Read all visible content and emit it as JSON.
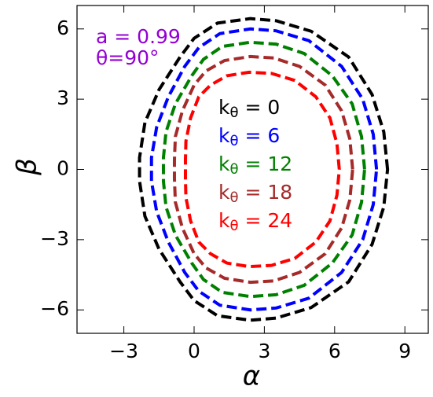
{
  "chart_data": {
    "type": "line",
    "annotations": [
      {
        "text": "a = 0.99",
        "color": "#9400d3"
      },
      {
        "text": "θ=90°",
        "color": "#9400d3"
      }
    ],
    "xlabel": "α",
    "ylabel": "β",
    "xlim": [
      -5,
      10
    ],
    "ylim": [
      -7,
      7
    ],
    "xticks": [
      {
        "value": -3,
        "label": "−3"
      },
      0,
      3,
      6,
      9
    ],
    "yticks": [
      {
        "value": -6,
        "label": "−6"
      },
      {
        "value": -3,
        "label": "−3"
      },
      0,
      3,
      6
    ],
    "series": [
      {
        "name": "kθ = 0",
        "color": "#000000",
        "x": [
          8.26,
          8.1,
          7.6,
          6.6,
          5.0,
          3.5,
          2.4,
          1.0,
          0.0,
          -0.6,
          -1.5,
          -2.1,
          -2.33,
          -2.33,
          -2.1,
          -1.5,
          -0.6,
          0.0,
          1.0,
          2.4,
          3.5,
          5.0,
          6.6,
          7.6,
          8.1
        ],
        "values": [
          0,
          1.6,
          3.2,
          4.8,
          5.9,
          6.35,
          6.44,
          6.25,
          5.6,
          4.8,
          3.4,
          2.0,
          0.5,
          -0.5,
          -2.0,
          -3.4,
          -4.8,
          -5.6,
          -6.25,
          -6.44,
          -6.35,
          -5.9,
          -4.8,
          -3.2,
          -1.6
        ]
      },
      {
        "name": "kθ = 6",
        "color": "#0000ff",
        "x": [
          7.79,
          7.65,
          7.2,
          6.3,
          4.9,
          3.5,
          2.4,
          1.1,
          0.2,
          -0.4,
          -1.1,
          -1.6,
          -1.82,
          -1.82,
          -1.6,
          -1.1,
          -0.4,
          0.2,
          1.1,
          2.4,
          3.5,
          4.9,
          6.3,
          7.2,
          7.65
        ],
        "values": [
          0,
          1.5,
          3.0,
          4.4,
          5.5,
          5.92,
          6.0,
          5.8,
          5.2,
          4.4,
          3.1,
          1.8,
          0.5,
          -0.5,
          -1.8,
          -3.1,
          -4.4,
          -5.2,
          -5.8,
          -6.0,
          -5.92,
          -5.5,
          -4.4,
          -3.0,
          -1.5
        ]
      },
      {
        "name": "kθ = 12",
        "color": "#008000",
        "x": [
          7.28,
          7.15,
          6.75,
          5.9,
          4.7,
          3.5,
          2.4,
          1.2,
          0.4,
          -0.1,
          -0.8,
          -1.2,
          -1.31,
          -1.31,
          -1.2,
          -0.8,
          -0.1,
          0.4,
          1.2,
          2.4,
          3.5,
          4.7,
          5.9,
          6.75,
          7.15
        ],
        "values": [
          0,
          1.4,
          2.8,
          4.0,
          4.95,
          5.35,
          5.43,
          5.25,
          4.7,
          4.0,
          2.8,
          1.6,
          0.5,
          -0.5,
          -1.6,
          -2.8,
          -4.0,
          -4.7,
          -5.25,
          -5.43,
          -5.35,
          -4.95,
          -4.0,
          -2.8,
          -1.4
        ]
      },
      {
        "name": "kθ = 18",
        "color": "#a52a2a",
        "x": [
          6.77,
          6.65,
          6.3,
          5.6,
          4.5,
          3.4,
          2.4,
          1.3,
          0.5,
          0.0,
          -0.5,
          -0.8,
          -0.84,
          -0.84,
          -0.8,
          -0.5,
          0.0,
          0.5,
          1.3,
          2.4,
          3.4,
          4.5,
          5.6,
          6.3,
          6.65
        ],
        "values": [
          0,
          1.3,
          2.5,
          3.6,
          4.4,
          4.76,
          4.82,
          4.65,
          4.2,
          3.6,
          2.5,
          1.4,
          0.4,
          -0.4,
          -1.4,
          -2.5,
          -3.6,
          -4.2,
          -4.65,
          -4.82,
          -4.76,
          -4.4,
          -3.6,
          -2.5,
          -1.3
        ]
      },
      {
        "name": "kθ = 24",
        "color": "#ff0000",
        "x": [
          6.2,
          6.1,
          5.8,
          5.2,
          4.3,
          3.3,
          2.35,
          1.4,
          0.7,
          0.2,
          -0.15,
          -0.35,
          -0.37,
          -0.37,
          -0.35,
          -0.15,
          0.2,
          0.7,
          1.4,
          2.35,
          3.3,
          4.3,
          5.2,
          5.8,
          6.1
        ],
        "values": [
          0,
          1.1,
          2.2,
          3.1,
          3.8,
          4.1,
          4.15,
          4.0,
          3.6,
          3.1,
          2.2,
          1.2,
          0.4,
          -0.4,
          -1.2,
          -2.2,
          -3.1,
          -3.6,
          -4.0,
          -4.15,
          -4.1,
          -3.8,
          -3.1,
          -2.2,
          -1.1
        ]
      }
    ]
  }
}
